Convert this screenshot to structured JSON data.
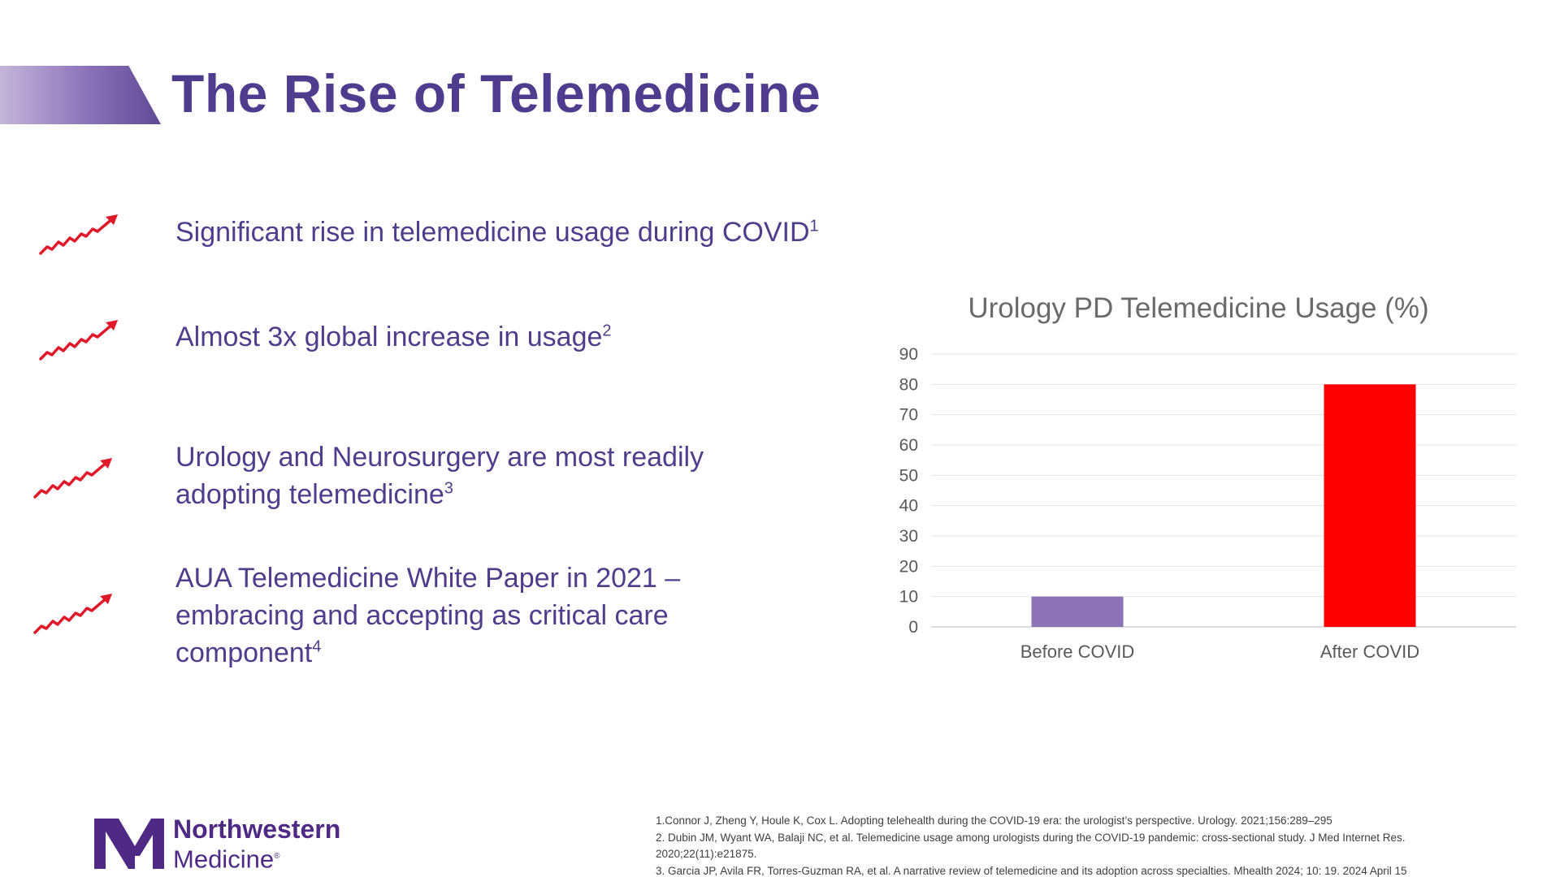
{
  "slide": {
    "title": "The Rise of Telemedicine",
    "accent_color": "#503c8e",
    "arrow_icon": "trend-up-arrow-icon",
    "arrow_color": "#e0192a"
  },
  "bullets": [
    {
      "text": "Significant rise in telemedicine usage during COVID",
      "sup": "1"
    },
    {
      "text": "Almost 3x global increase in usage",
      "sup": "2"
    },
    {
      "line1": "Urology and Neurosurgery are most readily",
      "line2": "adopting telemedicine",
      "sup": "3"
    },
    {
      "line1": "AUA Telemedicine White Paper in 2021 –",
      "line2": "embracing and accepting as critical care",
      "line3": "component",
      "sup": "4"
    }
  ],
  "chart_data": {
    "type": "bar",
    "title": "Urology PD Telemedicine Usage (%)",
    "categories": [
      "Before COVID",
      "After COVID"
    ],
    "values": [
      10,
      80
    ],
    "bar_colors": [
      "#8b73b5",
      "#ff0000"
    ],
    "ylim": [
      0,
      90
    ],
    "yticks": [
      0,
      10,
      20,
      30,
      40,
      50,
      60,
      70,
      80,
      90
    ],
    "grid": true,
    "legend": "none"
  },
  "logo": {
    "word1": "Northwestern",
    "word2": "Medicine",
    "reg": "®",
    "color": "#4e2a84"
  },
  "references": [
    "1.Connor J, Zheng Y, Houle K, Cox L. Adopting telehealth during the COVID-19 era: the urologist’s perspective. Urology. 2021;156:289–295",
    "2. Dubin JM, Wyant WA, Balaji NC, et al. Telemedicine usage among urologists during the COVID-19 pandemic: cross-sectional study. J Med Internet Res.",
    "2020;22(11):e21875.",
    "3. Garcia JP, Avila FR, Torres-Guzman RA, et al. A narrative review of telemedicine and its adoption across specialties. Mhealth 2024; 10: 19. 2024 April 15"
  ]
}
